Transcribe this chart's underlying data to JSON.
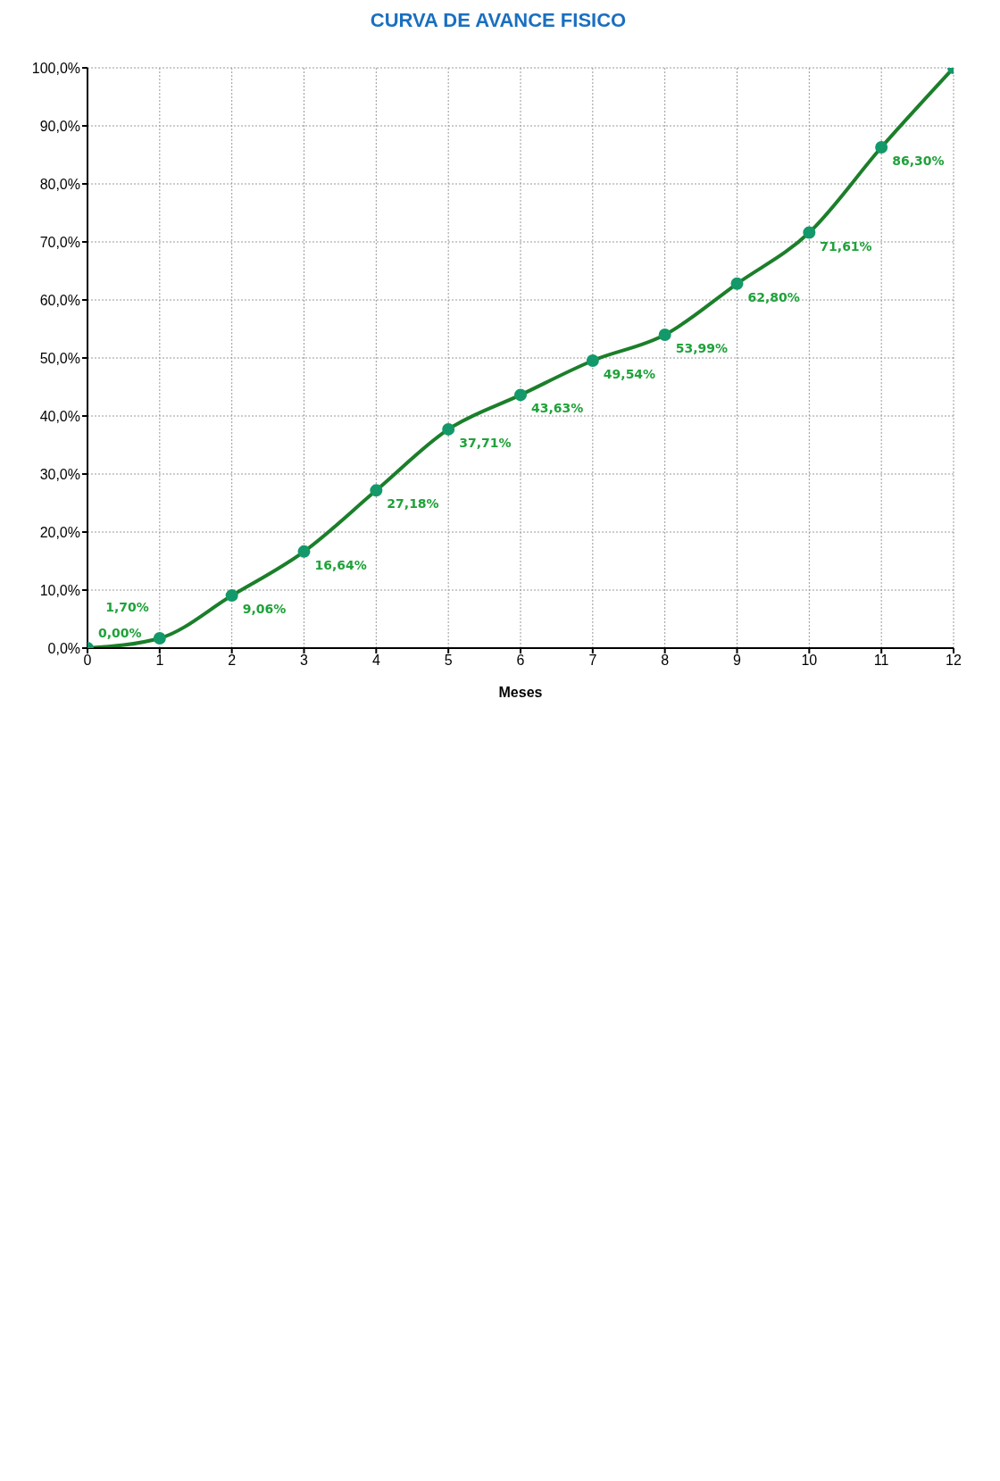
{
  "chart_data": {
    "type": "line",
    "title": "CURVA DE AVANCE FISICO",
    "xlabel": "Meses",
    "x": [
      0,
      1,
      2,
      3,
      4,
      5,
      6,
      7,
      8,
      9,
      10,
      11,
      12
    ],
    "series": [
      {
        "color": "#1b7f2a",
        "values": [
          0,
          1.7,
          9.06,
          16.64,
          27.18,
          37.71,
          43.63,
          49.54,
          53.99,
          62.8,
          71.61,
          86.3,
          100
        ],
        "value_labels": [
          "0,00%",
          "1,70%",
          "9,06%",
          "16,64%",
          "27,18%",
          "37,71%",
          "43,63%",
          "49,54%",
          "53,99%",
          "62,80%",
          "71,61%",
          "86,30%",
          null
        ]
      }
    ],
    "xlim": [
      0,
      12
    ],
    "xticks": [
      0,
      1,
      2,
      3,
      4,
      5,
      6,
      7,
      8,
      9,
      10,
      11,
      12
    ],
    "ylim": [
      0,
      100
    ],
    "yticks": [
      {
        "value": 0,
        "label": "0,0%"
      },
      {
        "value": 10,
        "label": "10,0%"
      },
      {
        "value": 20,
        "label": "20,0%"
      },
      {
        "value": 30,
        "label": "30,0%"
      },
      {
        "value": 40,
        "label": "40,0%"
      },
      {
        "value": 50,
        "label": "50,0%"
      },
      {
        "value": 60,
        "label": "60,0%"
      },
      {
        "value": 70,
        "label": "70,0%"
      },
      {
        "value": 80,
        "label": "80,0%"
      },
      {
        "value": 90,
        "label": "90,0%"
      },
      {
        "value": 100,
        "label": "100,0%"
      }
    ],
    "grid": true,
    "marker": "circle",
    "line_style": "solid",
    "legend": false
  }
}
